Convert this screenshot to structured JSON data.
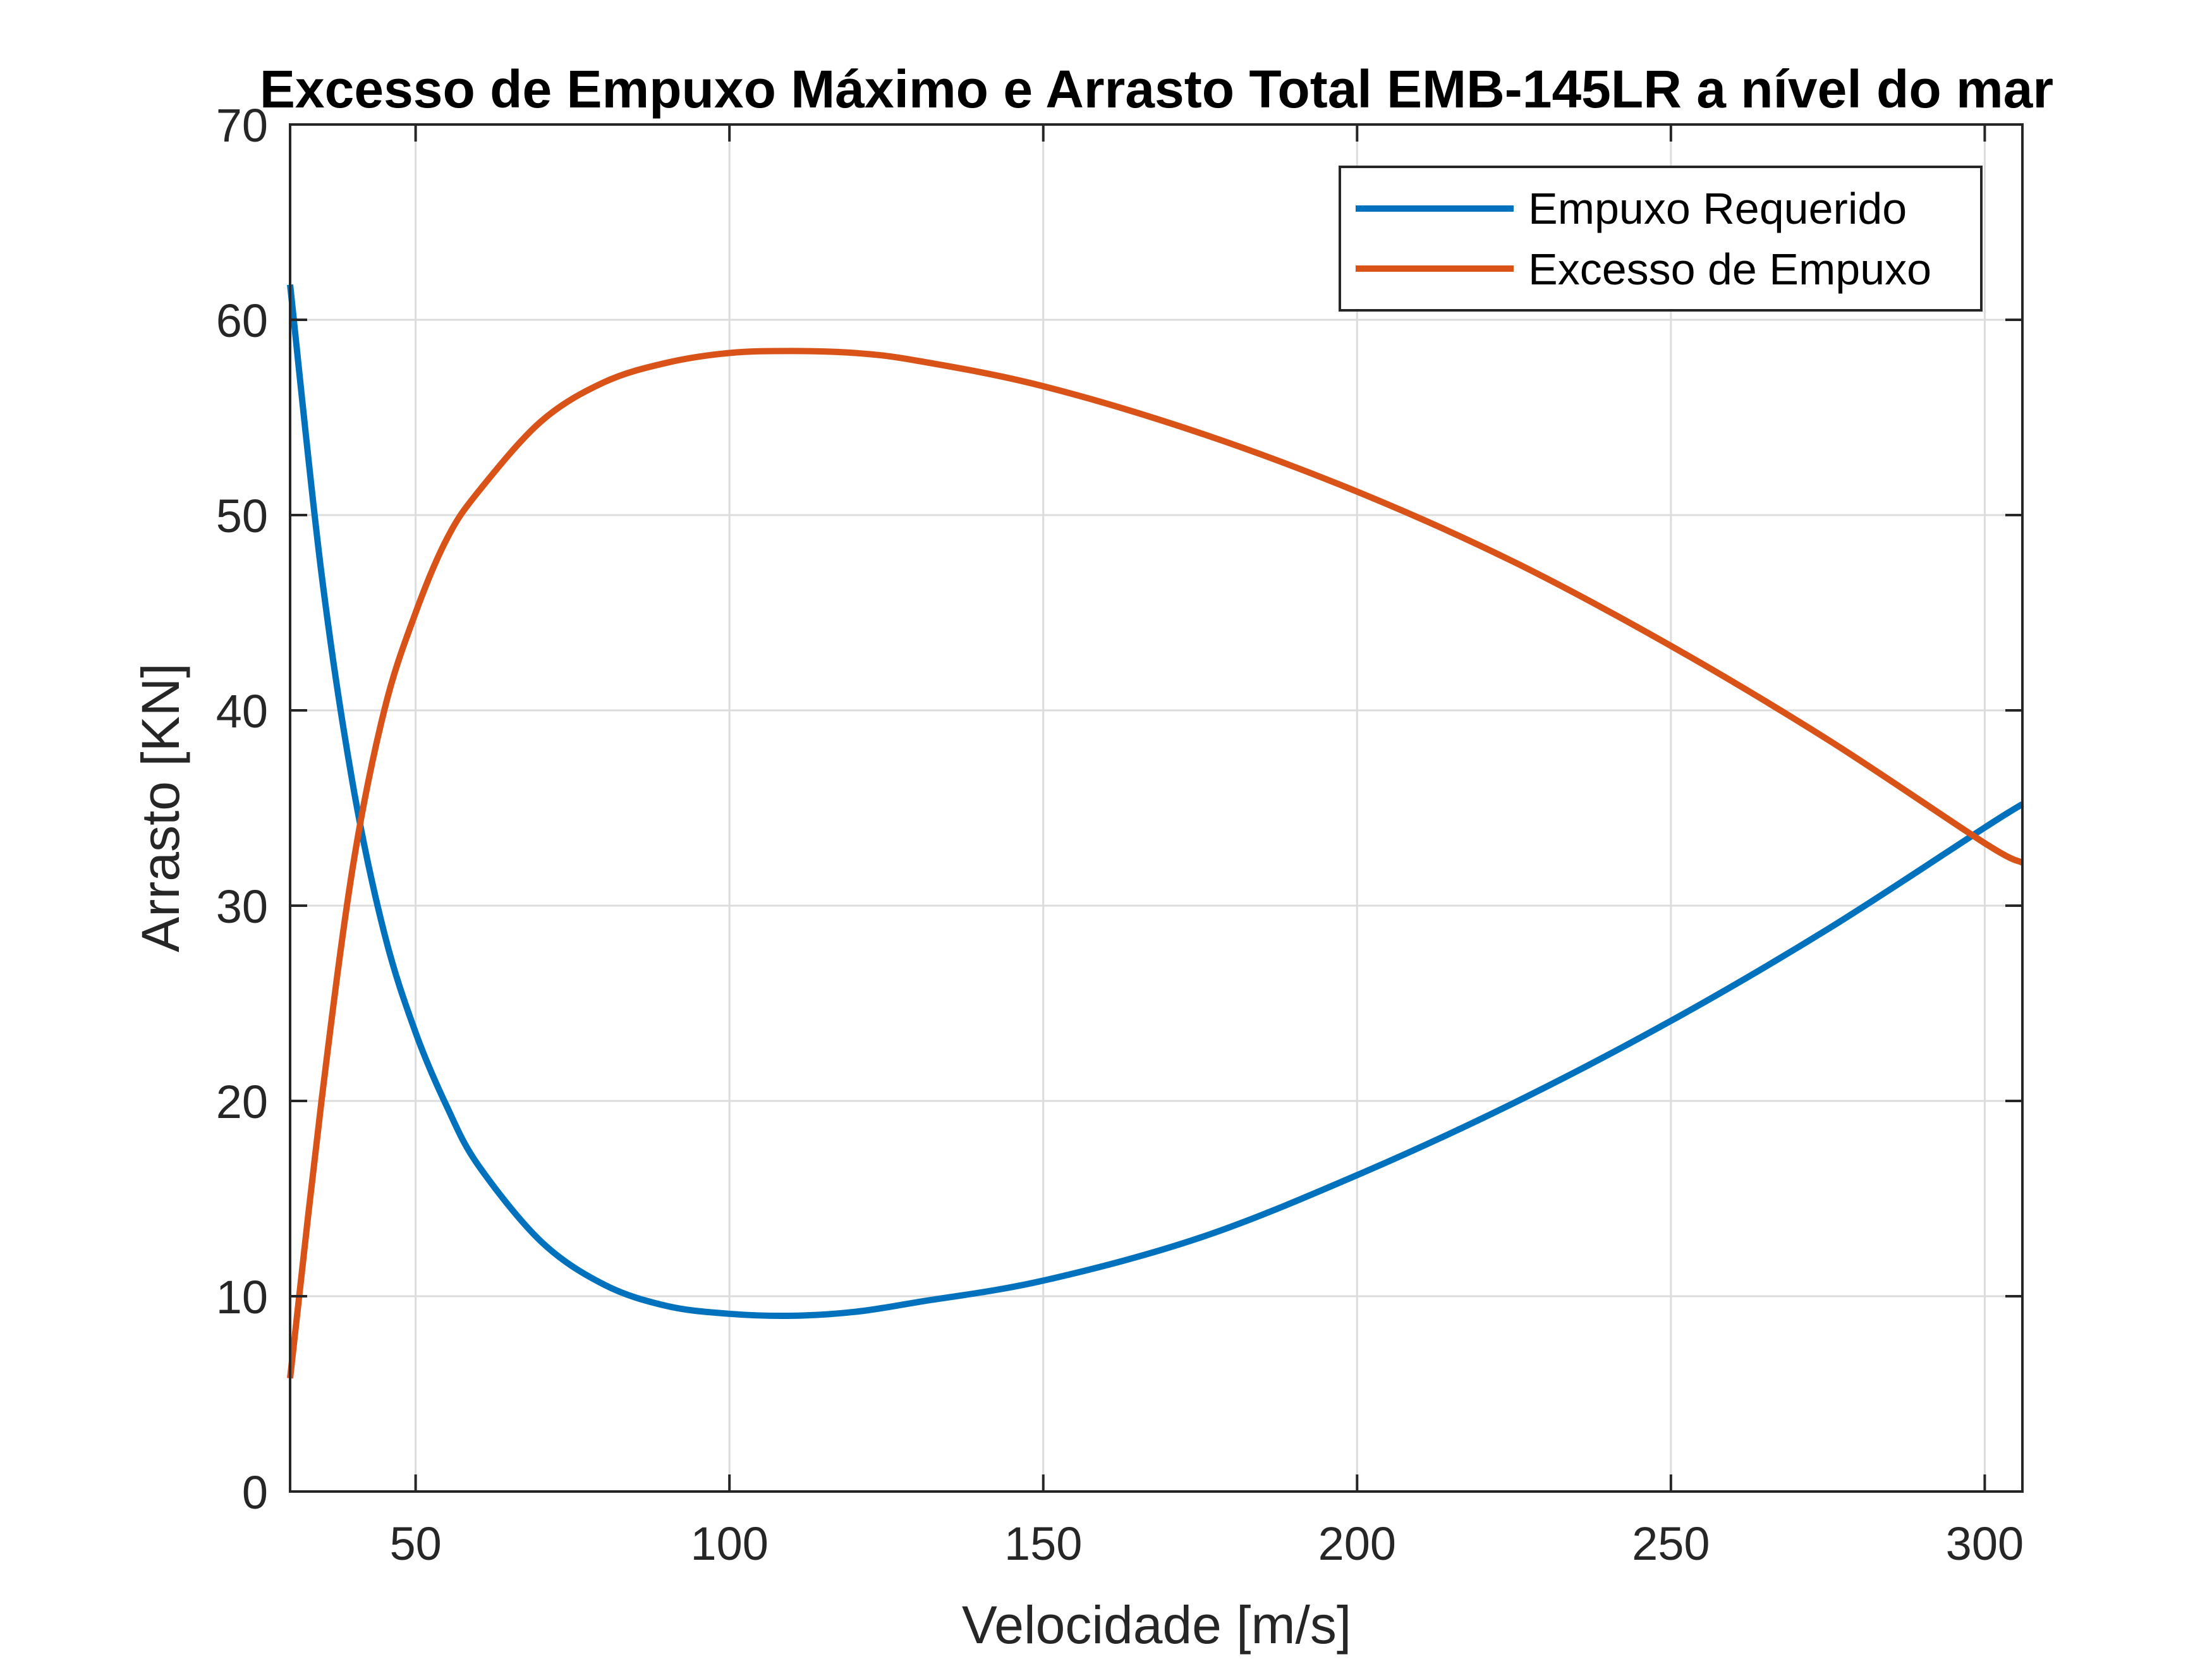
{
  "chart_data": {
    "type": "line",
    "title": "Excesso de Empuxo Máximo e Arrasto Total EMB-145LR a nível do mar",
    "xlabel": "Velocidade [m/s]",
    "ylabel": "Arrasto  [KN]",
    "xlim": [
      30,
      306
    ],
    "ylim": [
      0,
      70
    ],
    "xticks": [
      50,
      100,
      150,
      200,
      250,
      300
    ],
    "yticks": [
      0,
      10,
      20,
      30,
      40,
      50,
      60,
      70
    ],
    "grid": true,
    "legend_position": "top-right",
    "series": [
      {
        "name": "Empuxo Requerido",
        "color": "#0072BD",
        "x": [
          30,
          35,
          40,
          45,
          50,
          55,
          60,
          70,
          80,
          90,
          100,
          110,
          120,
          130,
          150,
          175,
          200,
          225,
          250,
          275,
          300,
          306
        ],
        "y": [
          61.8,
          47.0,
          36.2,
          28.6,
          23.5,
          19.7,
          16.7,
          12.8,
          10.6,
          9.5,
          9.1,
          9.0,
          9.2,
          9.7,
          10.8,
          13.0,
          16.2,
          19.9,
          24.1,
          28.8,
          34.0,
          35.2
        ]
      },
      {
        "name": "Excesso de Empuxo",
        "color": "#D95319",
        "x": [
          30,
          35,
          40,
          45,
          50,
          55,
          60,
          70,
          80,
          90,
          100,
          110,
          120,
          130,
          150,
          175,
          200,
          225,
          250,
          275,
          300,
          306
        ],
        "y": [
          5.8,
          20.0,
          32.0,
          40.0,
          45.0,
          48.8,
          51.2,
          54.8,
          56.8,
          57.8,
          58.3,
          58.4,
          58.3,
          57.9,
          56.6,
          54.2,
          51.2,
          47.6,
          43.3,
          38.5,
          33.2,
          32.2
        ]
      }
    ]
  }
}
